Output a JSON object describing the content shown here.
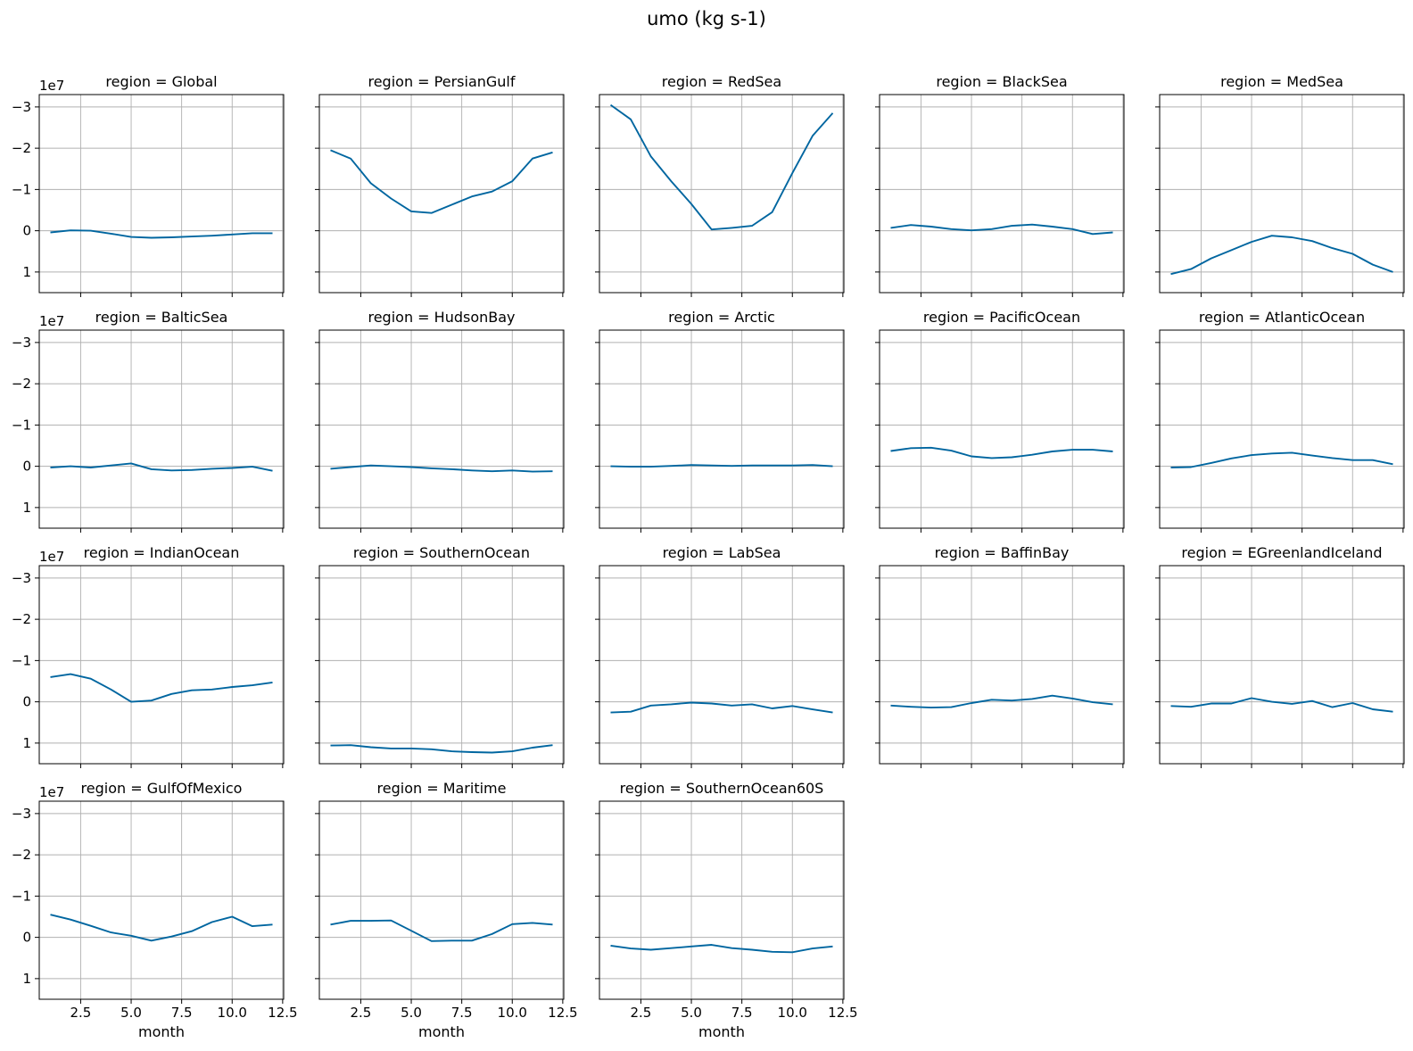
{
  "figure": {
    "suptitle": "umo (kg s-1)",
    "xlabel": "month",
    "offset_text": "1e7"
  },
  "style": {
    "line_color": "#0066a0",
    "grid_color": "#b0b0b0",
    "axes_color": "#000000"
  },
  "chart_data": {
    "type": "line",
    "layout": "facet grid, 4 rows x 5 columns, shared axes",
    "x_ticks": [
      2.5,
      5.0,
      7.5,
      10.0,
      12.5
    ],
    "x_tick_labels": [
      "2.5",
      "5.0",
      "7.5",
      "10.0",
      "12.5"
    ],
    "xlim": [
      0.45,
      12.55
    ],
    "y_ticks": [
      -3,
      -2,
      -1,
      0,
      1
    ],
    "y_tick_labels": [
      "−3",
      "−2",
      "−1",
      "0",
      "1"
    ],
    "ylim": [
      1.5,
      -3.3
    ],
    "y_inverted": true,
    "y_scale_multiplier": "1e7",
    "grid": true,
    "x": [
      1,
      2,
      3,
      4,
      5,
      6,
      7,
      8,
      9,
      10,
      11,
      12
    ],
    "panels": [
      {
        "title": "region = Global",
        "values": [
          0.04,
          -0.01,
          0.0,
          0.07,
          0.15,
          0.17,
          0.16,
          0.14,
          0.12,
          0.09,
          0.06,
          0.06
        ]
      },
      {
        "title": "region = PersianGulf",
        "values": [
          -1.95,
          -1.75,
          -1.15,
          -0.78,
          -0.47,
          -0.43,
          -0.63,
          -0.83,
          -0.95,
          -1.2,
          -1.75,
          -1.9
        ]
      },
      {
        "title": "region = RedSea",
        "values": [
          -3.05,
          -2.7,
          -1.8,
          -1.2,
          -0.65,
          -0.03,
          -0.07,
          -0.12,
          -0.45,
          -1.4,
          -2.3,
          -2.85
        ]
      },
      {
        "title": "region = BlackSea",
        "values": [
          -0.07,
          -0.14,
          -0.1,
          -0.04,
          -0.01,
          -0.04,
          -0.12,
          -0.15,
          -0.1,
          -0.04,
          0.08,
          0.04
        ]
      },
      {
        "title": "region = MedSea",
        "values": [
          1.05,
          0.93,
          0.67,
          0.47,
          0.27,
          0.12,
          0.16,
          0.25,
          0.42,
          0.56,
          0.82,
          1.0
        ]
      },
      {
        "title": "region = BalticSea",
        "values": [
          0.03,
          0.0,
          0.03,
          -0.02,
          -0.07,
          0.07,
          0.1,
          0.09,
          0.06,
          0.04,
          0.01,
          0.11
        ]
      },
      {
        "title": "region = HudsonBay",
        "values": [
          0.06,
          0.02,
          -0.02,
          0.0,
          0.02,
          0.05,
          0.07,
          0.1,
          0.12,
          0.1,
          0.13,
          0.12
        ]
      },
      {
        "title": "region = Arctic",
        "values": [
          0.0,
          0.01,
          0.01,
          -0.01,
          -0.03,
          -0.02,
          -0.01,
          -0.02,
          -0.02,
          -0.02,
          -0.03,
          0.0
        ]
      },
      {
        "title": "region = PacificOcean",
        "values": [
          -0.37,
          -0.44,
          -0.45,
          -0.38,
          -0.24,
          -0.2,
          -0.22,
          -0.28,
          -0.36,
          -0.4,
          -0.4,
          -0.36
        ]
      },
      {
        "title": "region = AtlanticOcean",
        "values": [
          0.03,
          0.02,
          -0.08,
          -0.19,
          -0.27,
          -0.31,
          -0.33,
          -0.26,
          -0.2,
          -0.15,
          -0.15,
          -0.05
        ]
      },
      {
        "title": "region = IndianOcean",
        "values": [
          -0.6,
          -0.67,
          -0.56,
          -0.3,
          0.0,
          -0.03,
          -0.19,
          -0.28,
          -0.3,
          -0.36,
          -0.4,
          -0.47
        ]
      },
      {
        "title": "region = SouthernOcean",
        "values": [
          1.06,
          1.05,
          1.1,
          1.13,
          1.13,
          1.15,
          1.2,
          1.22,
          1.23,
          1.2,
          1.11,
          1.05
        ]
      },
      {
        "title": "region = LabSea",
        "values": [
          0.26,
          0.24,
          0.09,
          0.06,
          0.02,
          0.04,
          0.09,
          0.06,
          0.16,
          0.1,
          0.18,
          0.26
        ]
      },
      {
        "title": "region = BaffinBay",
        "values": [
          0.09,
          0.12,
          0.14,
          0.13,
          0.03,
          -0.05,
          -0.03,
          -0.07,
          -0.15,
          -0.08,
          0.01,
          0.06
        ]
      },
      {
        "title": "region = EGreenlandIceland",
        "values": [
          0.1,
          0.12,
          0.04,
          0.04,
          -0.09,
          0.0,
          0.05,
          -0.02,
          0.13,
          0.03,
          0.18,
          0.24
        ]
      },
      {
        "title": "region = GulfOfMexico",
        "values": [
          -0.55,
          -0.43,
          -0.28,
          -0.12,
          -0.04,
          0.08,
          -0.02,
          -0.15,
          -0.37,
          -0.5,
          -0.27,
          -0.31
        ]
      },
      {
        "title": "region = Maritime",
        "values": [
          -0.31,
          -0.4,
          -0.4,
          -0.41,
          -0.16,
          0.09,
          0.08,
          0.08,
          -0.08,
          -0.32,
          -0.35,
          -0.31
        ]
      },
      {
        "title": "region = SouthernOcean60S",
        "values": [
          0.2,
          0.27,
          0.3,
          0.26,
          0.22,
          0.18,
          0.26,
          0.3,
          0.35,
          0.36,
          0.27,
          0.22
        ]
      }
    ]
  }
}
